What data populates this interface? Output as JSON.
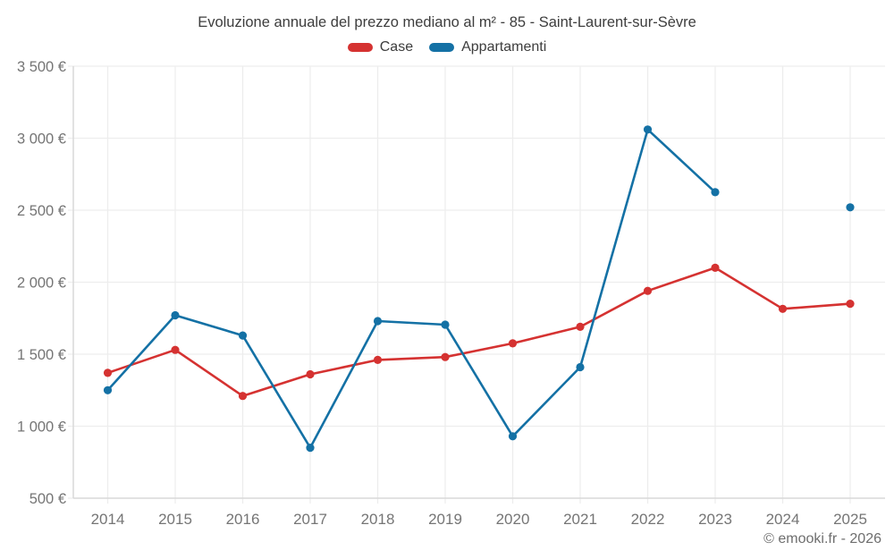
{
  "title": "Evoluzione annuale del prezzo mediano al m² - 85 - Saint-Laurent-sur-Sèvre",
  "footer": "© emooki.fr - 2026",
  "legend": {
    "case_label": "Case",
    "appartamenti_label": "Appartamenti"
  },
  "colors": {
    "case": "#d53231",
    "appartamenti": "#1471a5",
    "grid": "#ededed",
    "axis": "#d9d9d9",
    "tick_text": "#757575",
    "title_text": "#3d3d3d",
    "footer_text": "#6e6e6e",
    "background": "#ffffff"
  },
  "chart_data": {
    "type": "line",
    "title": "Evoluzione annuale del prezzo mediano al m² - 85 - Saint-Laurent-sur-Sèvre",
    "x": [
      2014,
      2015,
      2016,
      2017,
      2018,
      2019,
      2020,
      2021,
      2022,
      2023,
      2024,
      2025
    ],
    "series": [
      {
        "name": "Case",
        "color": "#d53231",
        "values": [
          1370,
          1530,
          1210,
          1360,
          1460,
          1480,
          1575,
          1690,
          1940,
          2100,
          1815,
          1850
        ]
      },
      {
        "name": "Appartamenti",
        "color": "#1471a5",
        "values": [
          1250,
          1770,
          1630,
          850,
          1730,
          1705,
          930,
          1410,
          3060,
          2625,
          null,
          2520
        ]
      }
    ],
    "xlabel": "",
    "ylabel": "",
    "ylim": [
      500,
      3500
    ],
    "y_ticks": [
      500,
      1000,
      1500,
      2000,
      2500,
      3000,
      3500
    ],
    "y_tick_labels": [
      "500 €",
      "1 000 €",
      "1 500 €",
      "2 000 €",
      "2 500 €",
      "3 000 €",
      "3 500 €"
    ],
    "grid": true,
    "legend_position": "top",
    "note": "Appartamenti has no value for 2024 (gap in line; 2025 is an isolated point)"
  }
}
